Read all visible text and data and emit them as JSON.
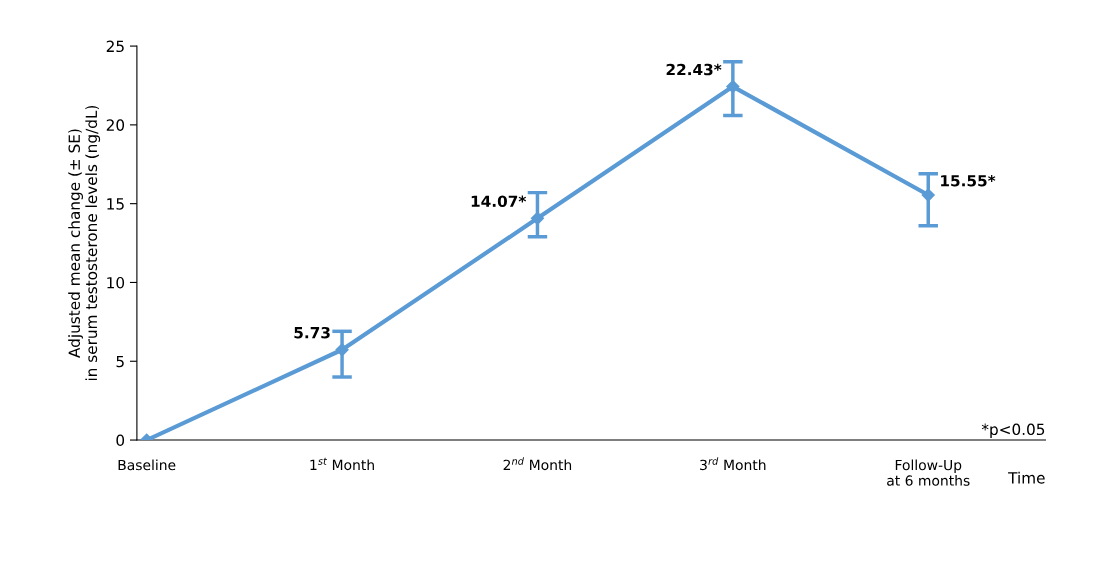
{
  "chart_data": {
    "type": "line",
    "xlabel": "Time",
    "ylabel": "Adjusted mean change (± SE)\nin serum testosterone levels (ng/dL)",
    "categories": [
      "Baseline",
      "1$^{st}$ Month",
      "2$^{nd}$ Month",
      "3$^{rd}$ Month",
      "Follow-Up\nat 6 months"
    ],
    "series": [
      {
        "color": "#5b9bd5",
        "values": [
          0,
          5.73,
          14.07,
          22.43,
          15.55
        ],
        "errors": [
          null,
          [
            4.0,
            6.9
          ],
          [
            12.9,
            15.7
          ],
          [
            20.6,
            24.0
          ],
          [
            13.6,
            16.9
          ]
        ],
        "value_labels": [
          null,
          "5.73",
          "14.07*",
          "22.43*",
          "15.55*"
        ]
      }
    ],
    "ylim": [
      0,
      25
    ],
    "yticks": [
      0,
      5,
      10,
      15,
      20,
      25
    ],
    "marker": "diamond",
    "line_style": "solid",
    "grid": false,
    "annotations": [
      "*p<0.05"
    ]
  }
}
